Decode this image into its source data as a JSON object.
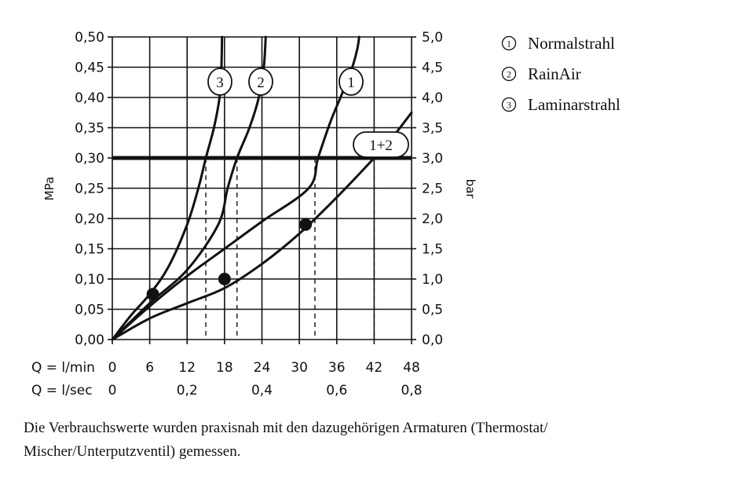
{
  "chart_data": {
    "type": "line",
    "left_axis": {
      "label": "MPa",
      "ticks": [
        "0,00",
        "0,05",
        "0,10",
        "0,15",
        "0,20",
        "0,25",
        "0,30",
        "0,35",
        "0,40",
        "0,45",
        "0,50"
      ],
      "ylim": [
        0,
        0.5
      ]
    },
    "right_axis": {
      "label": "bar",
      "ticks": [
        "0,0",
        "0,5",
        "1,0",
        "1,5",
        "2,0",
        "2,5",
        "3,0",
        "3,5",
        "4,0",
        "4,5",
        "5,0"
      ],
      "ylim": [
        0,
        5
      ]
    },
    "x_axis_lmin": {
      "label": "Q = l/min",
      "ticks": [
        "0",
        "6",
        "12",
        "18",
        "24",
        "30",
        "36",
        "42",
        "48"
      ],
      "xlim": [
        0,
        48
      ]
    },
    "x_axis_lsec": {
      "label": "Q = l/sec",
      "ticks": [
        "0",
        "0,2",
        "0,4",
        "0,6",
        "0,8"
      ]
    },
    "grid": true,
    "reference_line": {
      "y": 0.3,
      "style": "thick"
    },
    "series": [
      {
        "name": "Normalstrahl",
        "marker": "1",
        "x": [
          0,
          6,
          12,
          18,
          24,
          31.5,
          33,
          35,
          37,
          38.5,
          39.3,
          39.6
        ],
        "y": [
          0,
          0.055,
          0.105,
          0.15,
          0.195,
          0.25,
          0.3,
          0.36,
          0.41,
          0.45,
          0.48,
          0.5
        ],
        "dot": {
          "x": 31,
          "y": 0.19
        },
        "drop_x": 32.5
      },
      {
        "name": "RainAir",
        "marker": "2",
        "x": [
          0,
          6,
          12,
          17,
          18.5,
          20,
          22,
          23.5,
          24.3,
          24.6
        ],
        "y": [
          0,
          0.06,
          0.115,
          0.19,
          0.25,
          0.3,
          0.35,
          0.4,
          0.45,
          0.5
        ],
        "dot": {
          "x": 18,
          "y": 0.1
        },
        "drop_x": 20
      },
      {
        "name": "Laminarstrahl",
        "marker": "3",
        "x": [
          0,
          3,
          6,
          9,
          12,
          13.8,
          15,
          16.3,
          17.2,
          17.5,
          17.6
        ],
        "y": [
          0,
          0.04,
          0.075,
          0.12,
          0.19,
          0.25,
          0.3,
          0.35,
          0.4,
          0.45,
          0.5
        ],
        "dot": {
          "x": 6.5,
          "y": 0.075
        },
        "drop_x": 15
      },
      {
        "name": "1+2",
        "marker": "1+2",
        "x": [
          0,
          6,
          12,
          18,
          24,
          30,
          36,
          42,
          45,
          48
        ],
        "y": [
          0,
          0.035,
          0.06,
          0.085,
          0.125,
          0.175,
          0.235,
          0.3,
          0.335,
          0.375
        ],
        "drop_x": 42
      }
    ],
    "legend": {
      "placement": "right",
      "items": [
        {
          "marker": "1",
          "text": "Normalstrahl"
        },
        {
          "marker": "2",
          "text": "RainAir"
        },
        {
          "marker": "3",
          "text": "Laminarstrahl"
        }
      ]
    }
  },
  "footnote": "Die Verbrauchswerte wurden praxisnah mit den dazugehörigen Armaturen (Thermostat/\nMischer/Unterputzventil) gemessen."
}
